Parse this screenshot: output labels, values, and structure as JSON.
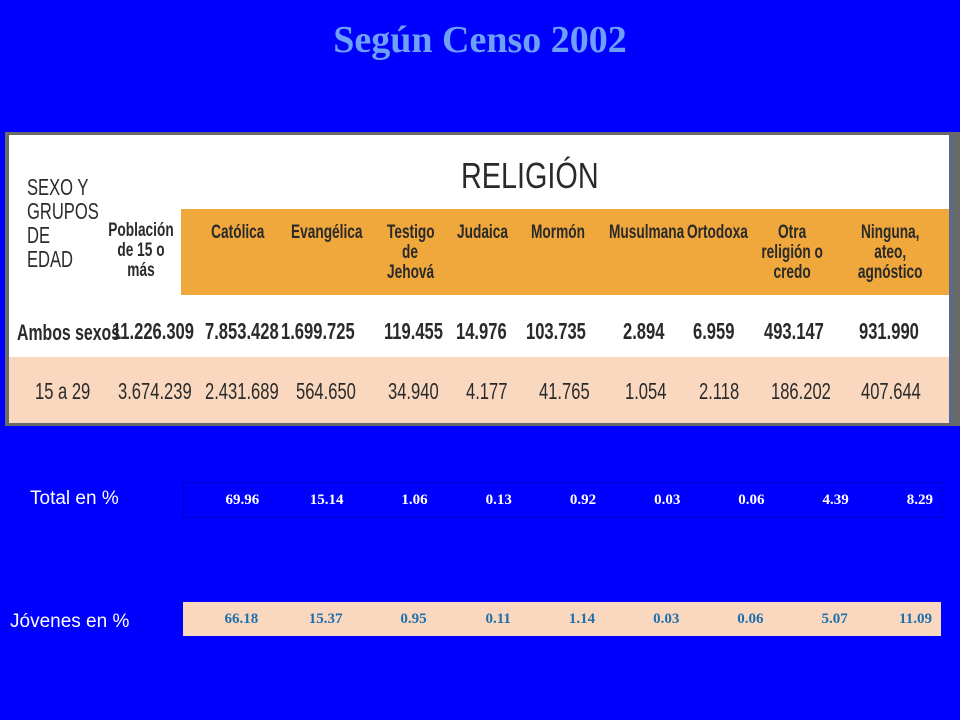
{
  "title": "Según Censo 2002",
  "table": {
    "religion_title": "RELIGIÓN",
    "sexo_header": "SEXO Y GRUPOS DE EDAD",
    "poblacion_header": "Población de 15 o más",
    "religions": [
      "Católica",
      "Evangélica",
      "Testigo de Jehová",
      "Judaica",
      "Mormón",
      "Musulmana",
      "Ortodoxa",
      "Otra religión o credo",
      "Ninguna, ateo, agnóstico"
    ],
    "rows": [
      {
        "label": "Ambos sexos",
        "poblacion": "11.226.309",
        "values": [
          "7.853.428",
          "1.699.725",
          "119.455",
          "14.976",
          "103.735",
          "2.894",
          "6.959",
          "493.147",
          "931.990"
        ]
      },
      {
        "label": "15 a 29",
        "poblacion": "3.674.239",
        "values": [
          "2.431.689",
          "564.650",
          "34.940",
          "4.177",
          "41.765",
          "1.054",
          "2.118",
          "186.202",
          "407.644"
        ]
      }
    ]
  },
  "percentages": {
    "total_label": "Total en %",
    "total_values": [
      "69.96",
      "15.14",
      "1.06",
      "0.13",
      "0.92",
      "0.03",
      "0.06",
      "4.39",
      "8.29"
    ],
    "young_label": "Jóvenes en %",
    "young_values": [
      "66.18",
      "15.37",
      "0.95",
      "0.11",
      "1.14",
      "0.03",
      "0.06",
      "5.07",
      "11.09"
    ]
  }
}
